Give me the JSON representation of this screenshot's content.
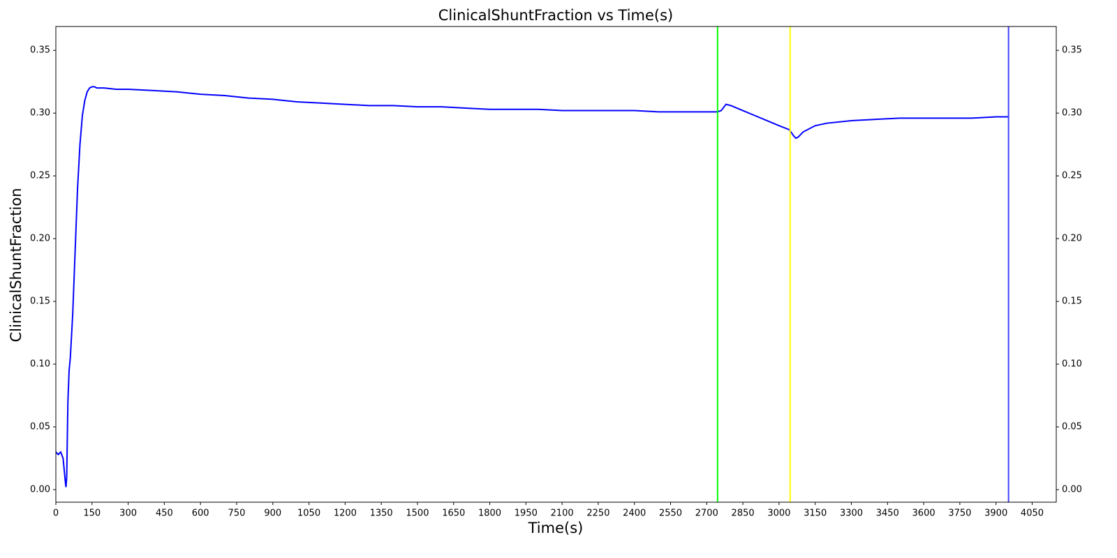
{
  "chart_data": {
    "type": "line",
    "title": "ClinicalShuntFraction vs Time(s)",
    "xlabel": "Time(s)",
    "ylabel": "ClinicalShuntFraction",
    "color": "#0000ff",
    "x": [
      0,
      10,
      20,
      30,
      35,
      40,
      42,
      45,
      50,
      55,
      60,
      70,
      80,
      90,
      100,
      110,
      120,
      130,
      140,
      150,
      160,
      170,
      180,
      200,
      250,
      300,
      400,
      500,
      600,
      700,
      800,
      900,
      1000,
      1100,
      1200,
      1300,
      1400,
      1500,
      1600,
      1700,
      1800,
      1900,
      2000,
      2100,
      2200,
      2300,
      2400,
      2500,
      2600,
      2700,
      2745,
      2760,
      2780,
      2800,
      2850,
      2900,
      2950,
      3000,
      3040,
      3046,
      3060,
      3070,
      3080,
      3100,
      3150,
      3200,
      3300,
      3400,
      3500,
      3600,
      3700,
      3800,
      3900,
      3952
    ],
    "values": [
      0.03,
      0.028,
      0.03,
      0.025,
      0.015,
      0.005,
      0.002,
      0.01,
      0.07,
      0.095,
      0.105,
      0.14,
      0.19,
      0.24,
      0.275,
      0.298,
      0.31,
      0.317,
      0.32,
      0.321,
      0.321,
      0.32,
      0.32,
      0.32,
      0.319,
      0.319,
      0.318,
      0.317,
      0.315,
      0.314,
      0.312,
      0.311,
      0.309,
      0.308,
      0.307,
      0.306,
      0.306,
      0.305,
      0.305,
      0.304,
      0.303,
      0.303,
      0.303,
      0.302,
      0.302,
      0.302,
      0.302,
      0.301,
      0.301,
      0.301,
      0.301,
      0.302,
      0.307,
      0.306,
      0.302,
      0.298,
      0.294,
      0.29,
      0.287,
      0.286,
      0.282,
      0.28,
      0.281,
      0.285,
      0.29,
      0.292,
      0.294,
      0.295,
      0.296,
      0.296,
      0.296,
      0.296,
      0.297,
      0.297
    ],
    "vlines": [
      {
        "x": 2745,
        "color": "#00ff00"
      },
      {
        "x": 3046,
        "color": "#ffff00"
      },
      {
        "x": 3952,
        "color": "#4040ff"
      }
    ],
    "xlim": [
      0,
      4150
    ],
    "xticks": [
      0,
      150,
      300,
      450,
      600,
      750,
      900,
      1050,
      1200,
      1350,
      1500,
      1650,
      1800,
      1950,
      2100,
      2250,
      2400,
      2550,
      2700,
      2850,
      3000,
      3150,
      3300,
      3450,
      3600,
      3750,
      3900,
      4050
    ],
    "ylim": [
      -0.01,
      0.369
    ],
    "yticks": [
      {
        "value": 0,
        "label": "0.00"
      },
      0.05,
      {
        "value": 0.1,
        "label": "0.10"
      },
      0.15,
      {
        "value": 0.2,
        "label": "0.20"
      },
      0.25,
      {
        "value": 0.3,
        "label": "0.30"
      },
      0.35
    ],
    "y2lim": [
      -0.01,
      0.369
    ],
    "y2ticks": [
      {
        "value": 0,
        "label": "0.00"
      },
      0.05,
      {
        "value": 0.1,
        "label": "0.10"
      },
      0.15,
      {
        "value": 0.2,
        "label": "0.20"
      },
      0.25,
      {
        "value": 0.3,
        "label": "0.30"
      },
      0.35
    ]
  }
}
